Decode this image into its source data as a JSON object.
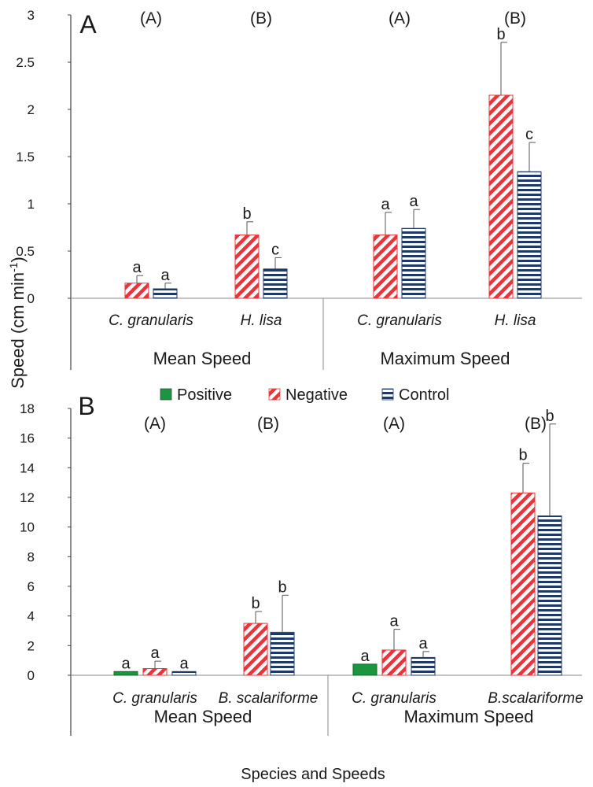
{
  "figure": {
    "y_axis_label": "Speed (cm min",
    "y_axis_label_sup": "-1",
    "y_axis_label_end": ")",
    "x_axis_label": "Species and Speeds"
  },
  "legend": {
    "placement": "top-center",
    "items": [
      {
        "name": "Positive",
        "color": "#1a9641",
        "pattern": "solid"
      },
      {
        "name": "Negative",
        "color": "#e8343a",
        "pattern": "diagonal-stripes"
      },
      {
        "name": "Control",
        "color": "#1f3864",
        "pattern": "horizontal-stripes"
      }
    ]
  },
  "chart_data": [
    {
      "type": "bar",
      "panel_label": "A",
      "ylim": [
        0,
        3
      ],
      "yticks": [
        "0",
        "0.5",
        "1",
        "1.5",
        "2",
        "2.5",
        "3"
      ],
      "ytick_values": [
        0,
        0.5,
        1,
        1.5,
        2,
        2.5,
        3
      ],
      "group_labels": [
        "Mean Speed",
        "Maximum Speed"
      ],
      "categories": [
        {
          "species": "C. granularis",
          "group": "Mean Speed",
          "species_letter": "(A)",
          "bars": [
            {
              "series": "Negative",
              "value": 0.16,
              "error": 0.08,
              "letter": "a"
            },
            {
              "series": "Control",
              "value": 0.1,
              "error": 0.06,
              "letter": "a"
            }
          ]
        },
        {
          "species": "H. lisa",
          "group": "Mean Speed",
          "species_letter": "(B)",
          "bars": [
            {
              "series": "Negative",
              "value": 0.67,
              "error": 0.14,
              "letter": "b"
            },
            {
              "series": "Control",
              "value": 0.31,
              "error": 0.12,
              "letter": "c"
            }
          ]
        },
        {
          "species": "C. granularis",
          "group": "Maximum Speed",
          "species_letter": "(A)",
          "bars": [
            {
              "series": "Negative",
              "value": 0.67,
              "error": 0.24,
              "letter": "a"
            },
            {
              "series": "Control",
              "value": 0.74,
              "error": 0.2,
              "letter": "a"
            }
          ]
        },
        {
          "species": "H. lisa",
          "group": "Maximum Speed",
          "species_letter": "(B)",
          "bars": [
            {
              "series": "Negative",
              "value": 2.15,
              "error": 0.56,
              "letter": "b"
            },
            {
              "series": "Control",
              "value": 1.34,
              "error": 0.31,
              "letter": "c"
            }
          ]
        }
      ]
    },
    {
      "type": "bar",
      "panel_label": "B",
      "ylim": [
        0,
        18
      ],
      "yticks": [
        "0",
        "2",
        "4",
        "6",
        "8",
        "10",
        "12",
        "14",
        "16",
        "18"
      ],
      "ytick_values": [
        0,
        2,
        4,
        6,
        8,
        10,
        12,
        14,
        16,
        18
      ],
      "group_labels": [
        "Mean Speed",
        "Maximum Speed"
      ],
      "categories": [
        {
          "species": "C. granularis",
          "group": "Mean Speed",
          "species_letter": "(A)",
          "bars": [
            {
              "series": "Positive",
              "value": 0.25,
              "error": 0,
              "letter": "a"
            },
            {
              "series": "Negative",
              "value": 0.45,
              "error": 0.5,
              "letter": "a"
            },
            {
              "series": "Control",
              "value": 0.25,
              "error": 0,
              "letter": "a"
            }
          ]
        },
        {
          "species": "B. scalariforme",
          "group": "Mean Speed",
          "species_letter": "(B)",
          "bars": [
            {
              "series": "Negative",
              "value": 3.5,
              "error": 0.8,
              "letter": "b"
            },
            {
              "series": "Control",
              "value": 2.9,
              "error": 2.5,
              "letter": "b"
            }
          ]
        },
        {
          "species": "C. granularis",
          "group": "Maximum Speed",
          "species_letter": "(A)",
          "bars": [
            {
              "series": "Positive",
              "value": 0.75,
              "error": 0,
              "letter": "a"
            },
            {
              "series": "Negative",
              "value": 1.7,
              "error": 1.4,
              "letter": "a"
            },
            {
              "series": "Control",
              "value": 1.2,
              "error": 0.4,
              "letter": "a"
            }
          ]
        },
        {
          "species": "B.scalariforme",
          "group": "Maximum Speed",
          "species_letter": "(B)",
          "bars": [
            {
              "series": "Negative",
              "value": 12.3,
              "error": 2.0,
              "letter": "b"
            },
            {
              "series": "Control",
              "value": 10.75,
              "error": 6.2,
              "letter": "b"
            }
          ]
        }
      ]
    }
  ]
}
